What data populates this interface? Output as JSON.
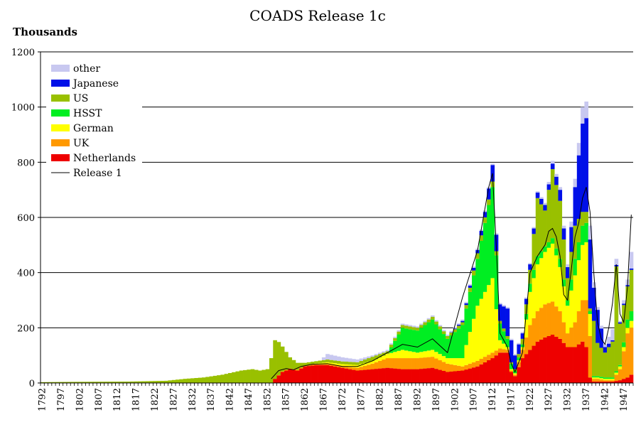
{
  "chart_data": {
    "type": "bar",
    "stacked": true,
    "title": "COADS Release 1c",
    "ylabel": "Thousands",
    "xlabel": "",
    "ylim": [
      0,
      1200
    ],
    "yticks": [
      0,
      200,
      400,
      600,
      800,
      1000,
      1200
    ],
    "xticks": [
      1792,
      1797,
      1802,
      1807,
      1812,
      1817,
      1822,
      1827,
      1832,
      1837,
      1842,
      1847,
      1852,
      1857,
      1862,
      1867,
      1872,
      1877,
      1882,
      1887,
      1892,
      1897,
      1902,
      1907,
      1912,
      1917,
      1922,
      1927,
      1932,
      1937,
      1942,
      1947
    ],
    "x_start": 1792,
    "x_end": 1949,
    "grid": "horizontal",
    "legend_position": "top-left",
    "series_order": [
      "Netherlands",
      "UK",
      "German",
      "HSST",
      "US",
      "Japanese",
      "other"
    ],
    "legend": [
      {
        "name": "other",
        "color": "#c8c8f0",
        "kind": "box"
      },
      {
        "name": "Japanese",
        "color": "#0010e8",
        "kind": "box"
      },
      {
        "name": "US",
        "color": "#99c000",
        "kind": "box"
      },
      {
        "name": "HSST",
        "color": "#00ee22",
        "kind": "box"
      },
      {
        "name": "German",
        "color": "#ffff00",
        "kind": "box"
      },
      {
        "name": "UK",
        "color": "#ff9900",
        "kind": "box"
      },
      {
        "name": "Netherlands",
        "color": "#ee0000",
        "kind": "box"
      },
      {
        "name": "Release 1",
        "color": "#000000",
        "kind": "line"
      }
    ],
    "series": [
      {
        "name": "Netherlands",
        "color": "#ee0000",
        "x": [
          1792,
          1853,
          1854,
          1856,
          1858,
          1860,
          1862,
          1865,
          1868,
          1872,
          1876,
          1880,
          1884,
          1888,
          1892,
          1896,
          1900,
          1904,
          1908,
          1912,
          1914,
          1916,
          1917,
          1918,
          1920,
          1922,
          1924,
          1926,
          1928,
          1930,
          1932,
          1934,
          1936,
          1937,
          1938,
          1939,
          1940,
          1942,
          1944,
          1946,
          1948,
          1949
        ],
        "values": [
          0,
          0,
          15,
          40,
          50,
          45,
          60,
          65,
          65,
          55,
          45,
          50,
          55,
          50,
          50,
          55,
          40,
          45,
          60,
          90,
          110,
          110,
          40,
          25,
          90,
          120,
          150,
          165,
          175,
          160,
          130,
          130,
          150,
          130,
          20,
          5,
          5,
          5,
          5,
          10,
          20,
          30
        ]
      },
      {
        "name": "UK",
        "color": "#ff9900",
        "x": [
          1792,
          1853,
          1854,
          1856,
          1858,
          1860,
          1862,
          1865,
          1868,
          1872,
          1876,
          1880,
          1884,
          1888,
          1892,
          1896,
          1900,
          1904,
          1908,
          1912,
          1914,
          1916,
          1917,
          1918,
          1920,
          1922,
          1924,
          1926,
          1928,
          1930,
          1932,
          1934,
          1936,
          1937,
          1938,
          1939,
          1940,
          1942,
          1944,
          1946,
          1948,
          1949
        ],
        "values": [
          0,
          0,
          0,
          2,
          3,
          3,
          3,
          4,
          5,
          5,
          10,
          20,
          35,
          40,
          40,
          40,
          30,
          15,
          20,
          20,
          15,
          10,
          5,
          5,
          30,
          90,
          110,
          120,
          120,
          100,
          50,
          90,
          150,
          170,
          150,
          10,
          10,
          5,
          5,
          40,
          160,
          170
        ]
      },
      {
        "name": "German",
        "color": "#ffff00",
        "x": [
          1792,
          1853,
          1854,
          1856,
          1858,
          1860,
          1862,
          1865,
          1868,
          1872,
          1876,
          1880,
          1884,
          1888,
          1892,
          1896,
          1900,
          1904,
          1908,
          1912,
          1914,
          1916,
          1917,
          1918,
          1920,
          1922,
          1924,
          1926,
          1928,
          1930,
          1932,
          1934,
          1936,
          1937,
          1938,
          1939,
          1940,
          1942,
          1944,
          1946,
          1948,
          1949
        ],
        "values": [
          0,
          0,
          0,
          0,
          0,
          0,
          0,
          2,
          5,
          8,
          10,
          10,
          15,
          30,
          20,
          25,
          20,
          30,
          200,
          270,
          30,
          10,
          5,
          5,
          10,
          120,
          170,
          190,
          210,
          160,
          100,
          170,
          200,
          210,
          80,
          5,
          5,
          5,
          5,
          10,
          20,
          25
        ]
      },
      {
        "name": "HSST",
        "color": "#00ee22",
        "x": [
          1792,
          1853,
          1854,
          1856,
          1858,
          1860,
          1862,
          1865,
          1868,
          1872,
          1876,
          1880,
          1884,
          1888,
          1892,
          1896,
          1900,
          1904,
          1908,
          1912,
          1914,
          1916,
          1917,
          1918,
          1920,
          1922,
          1924,
          1926,
          1928,
          1930,
          1932,
          1934,
          1936,
          1937,
          1938,
          1939,
          1940,
          1942,
          1944,
          1946,
          1948,
          1949
        ],
        "values": [
          0,
          0,
          0,
          0,
          0,
          0,
          0,
          0,
          0,
          0,
          0,
          0,
          0,
          80,
          80,
          110,
          70,
          120,
          170,
          330,
          60,
          30,
          20,
          10,
          10,
          30,
          30,
          20,
          20,
          30,
          20,
          60,
          70,
          70,
          10,
          5,
          5,
          5,
          5,
          5,
          30,
          35
        ]
      },
      {
        "name": "US",
        "color": "#99c000",
        "x": [
          1792,
          1800,
          1815,
          1825,
          1830,
          1835,
          1840,
          1845,
          1848,
          1850,
          1852,
          1853,
          1854,
          1855,
          1856,
          1858,
          1860,
          1862,
          1865,
          1868,
          1872,
          1876,
          1880,
          1884,
          1888,
          1892,
          1896,
          1900,
          1904,
          1908,
          1912,
          1914,
          1916,
          1917,
          1918,
          1920,
          1922,
          1924,
          1926,
          1928,
          1930,
          1932,
          1934,
          1936,
          1937,
          1938,
          1939,
          1940,
          1942,
          1944,
          1945,
          1946,
          1948,
          1949
        ],
        "values": [
          3,
          4,
          5,
          8,
          15,
          20,
          30,
          45,
          50,
          45,
          50,
          90,
          140,
          120,
          90,
          40,
          25,
          10,
          8,
          10,
          10,
          10,
          15,
          10,
          10,
          10,
          10,
          10,
          10,
          20,
          20,
          10,
          10,
          5,
          5,
          20,
          50,
          210,
          130,
          250,
          210,
          80,
          120,
          50,
          40,
          10,
          200,
          120,
          90,
          130,
          380,
          150,
          120,
          150
        ]
      },
      {
        "name": "Japanese",
        "color": "#0010e8",
        "x": [
          1792,
          1900,
          1904,
          1906,
          1908,
          1910,
          1912,
          1914,
          1916,
          1917,
          1918,
          1920,
          1922,
          1924,
          1926,
          1928,
          1930,
          1932,
          1934,
          1936,
          1937,
          1938,
          1939,
          1940,
          1942,
          1944,
          1946,
          1949
        ],
        "values": [
          0,
          0,
          5,
          8,
          12,
          20,
          60,
          60,
          100,
          80,
          50,
          20,
          20,
          20,
          20,
          20,
          40,
          40,
          140,
          320,
          340,
          250,
          120,
          120,
          20,
          5,
          5,
          5
        ]
      },
      {
        "name": "other",
        "color": "#c8c8f0",
        "x": [
          1792,
          1866,
          1868,
          1872,
          1876,
          1880,
          1884,
          1888,
          1892,
          1896,
          1900,
          1904,
          1908,
          1912,
          1916,
          1920,
          1924,
          1928,
          1932,
          1934,
          1936,
          1937,
          1938,
          1939,
          1940,
          1942,
          1944,
          1946,
          1948,
          1949
        ],
        "values": [
          0,
          0,
          20,
          15,
          10,
          5,
          5,
          5,
          5,
          5,
          5,
          5,
          5,
          5,
          5,
          5,
          5,
          10,
          10,
          30,
          60,
          60,
          50,
          20,
          10,
          10,
          40,
          5,
          20,
          60
        ]
      },
      {
        "name": "Release 1",
        "color": "#000000",
        "type": "line",
        "x": [
          1853,
          1855,
          1857,
          1859,
          1861,
          1864,
          1868,
          1872,
          1876,
          1880,
          1884,
          1888,
          1892,
          1896,
          1900,
          1904,
          1908,
          1911,
          1912,
          1913,
          1914,
          1916,
          1917,
          1918,
          1920,
          1922,
          1924,
          1926,
          1927,
          1928,
          1929,
          1930,
          1931,
          1932,
          1933,
          1934,
          1935,
          1936,
          1937,
          1938,
          1939,
          1940,
          1941,
          1942,
          1943,
          1944,
          1945,
          1946,
          1947,
          1948,
          1949
        ],
        "values": [
          15,
          45,
          52,
          48,
          60,
          68,
          70,
          60,
          60,
          80,
          110,
          140,
          130,
          160,
          110,
          310,
          480,
          710,
          760,
          500,
          180,
          130,
          70,
          40,
          110,
          400,
          460,
          500,
          550,
          560,
          530,
          460,
          320,
          300,
          410,
          530,
          580,
          670,
          710,
          620,
          400,
          220,
          160,
          140,
          200,
          290,
          430,
          250,
          220,
          350,
          610
        ]
      }
    ]
  }
}
